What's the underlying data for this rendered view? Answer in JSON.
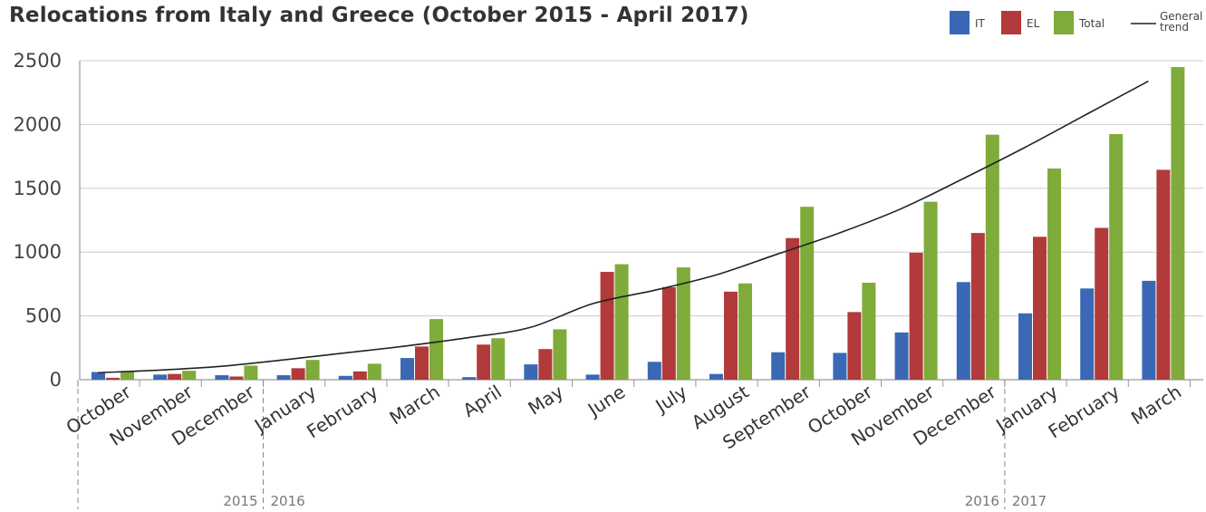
{
  "chart_data": {
    "type": "bar",
    "title": "Relocations from Italy and Greece (October 2015 - April 2017)",
    "categories": [
      "October",
      "November",
      "December",
      "January",
      "February",
      "March",
      "April",
      "May",
      "June",
      "July",
      "August",
      "September",
      "October",
      "November",
      "December",
      "January",
      "February",
      "March"
    ],
    "series": [
      {
        "name": "IT",
        "color": "#3a68b4",
        "values": [
          60,
          40,
          35,
          35,
          30,
          170,
          20,
          120,
          40,
          140,
          45,
          215,
          210,
          370,
          765,
          520,
          715,
          775
        ]
      },
      {
        "name": "EL",
        "color": "#b23a3a",
        "values": [
          15,
          45,
          25,
          90,
          65,
          260,
          275,
          240,
          845,
          725,
          690,
          1110,
          530,
          995,
          1150,
          1120,
          1190,
          1645
        ]
      },
      {
        "name": "Total",
        "color": "#7fab3a",
        "values": [
          60,
          70,
          110,
          155,
          125,
          475,
          325,
          395,
          905,
          880,
          755,
          1355,
          760,
          1395,
          1920,
          1655,
          1925,
          2450
        ]
      }
    ],
    "trend": {
      "name": "General trend",
      "color": "#222222",
      "values": [
        55,
        75,
        105,
        155,
        210,
        265,
        330,
        410,
        595,
        700,
        820,
        985,
        1150,
        1340,
        1575,
        1820,
        2080,
        2340
      ]
    },
    "ylim": [
      0,
      2500
    ],
    "yticks": [
      0,
      500,
      1000,
      1500,
      2000,
      2500
    ],
    "year_labels": [
      {
        "text": "2015",
        "after_index": 2
      },
      {
        "text": "2016",
        "after_index": 3
      },
      {
        "text": "2016",
        "after_index": 14
      },
      {
        "text": "2017",
        "after_index": 15
      }
    ],
    "year_dividers_after": [
      2,
      14
    ],
    "grid": true,
    "legend_placement": "top-right",
    "legend": [
      {
        "label": "IT",
        "color": "#3a68b4"
      },
      {
        "label": "EL",
        "color": "#b23a3a"
      },
      {
        "label": "Total",
        "color": "#7fab3a"
      },
      {
        "label_lines": [
          "General",
          "trend"
        ],
        "color": "#222222"
      }
    ]
  }
}
